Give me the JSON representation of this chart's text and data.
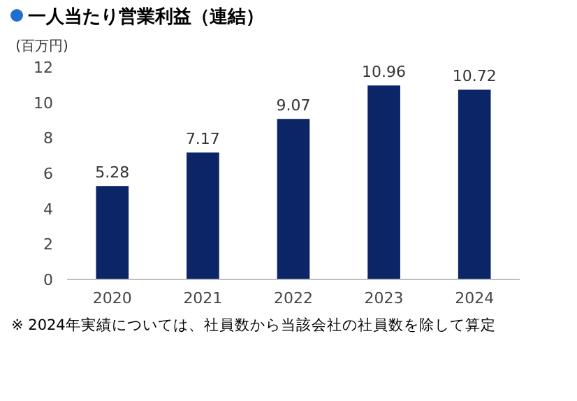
{
  "chart_data": {
    "type": "bar",
    "title": "一人当たり営業利益（連結）",
    "ylabel": "(百万円)",
    "categories": [
      "2020",
      "2021",
      "2022",
      "2023",
      "2024"
    ],
    "values": [
      5.28,
      7.17,
      9.07,
      10.96,
      10.72
    ],
    "color": "#0b2566",
    "ylim": [
      0,
      12
    ],
    "yticks": [
      0,
      2,
      4,
      6,
      8,
      10,
      12
    ],
    "data_labels": true,
    "annotations": [
      "※ 2024年実績については、社員数から当該会社の社員数を除して算定"
    ]
  }
}
